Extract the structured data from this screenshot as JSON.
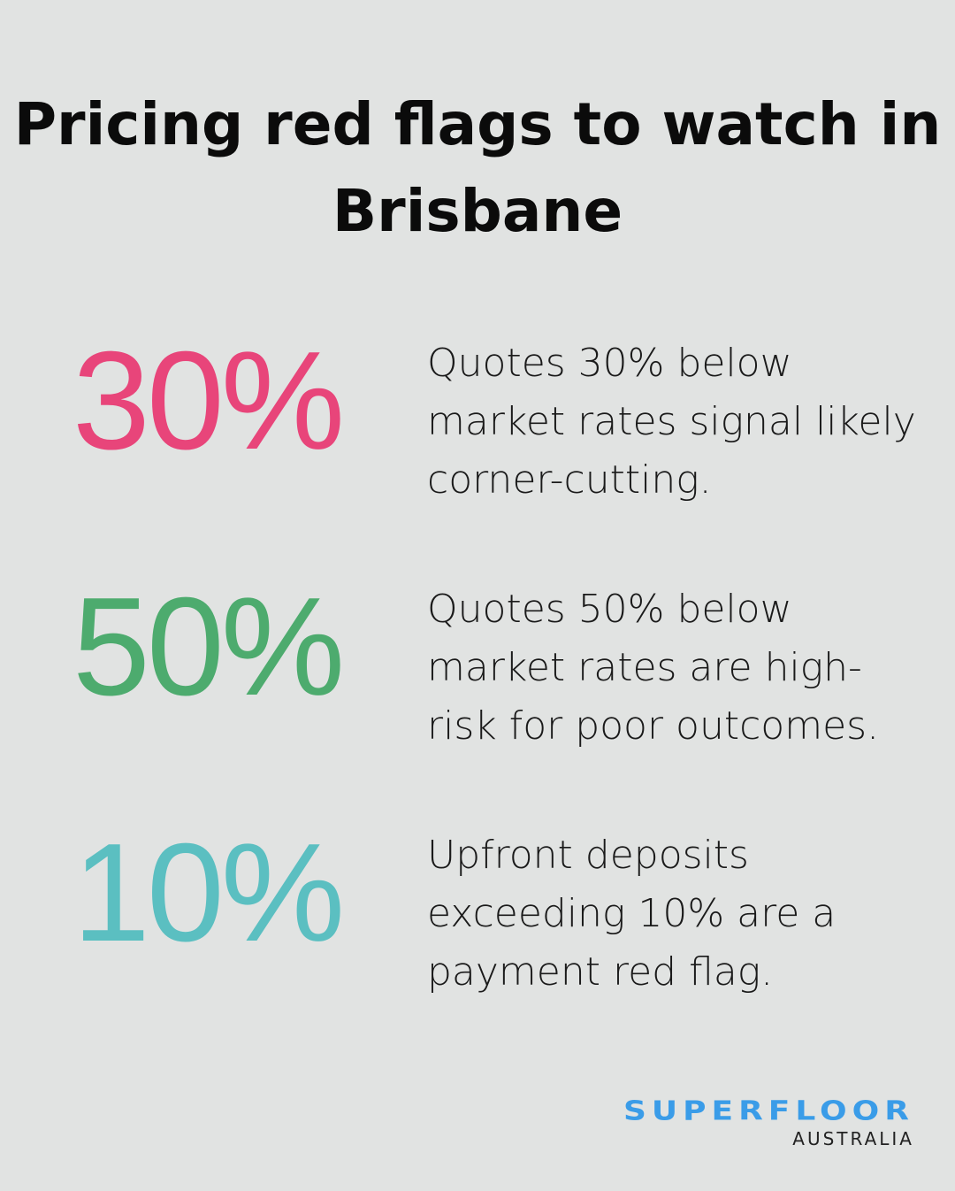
{
  "title": "Pricing red flags to watch in Brisbane",
  "stats": [
    {
      "value": "30%",
      "color": "#e8457a",
      "description": "Quotes 30% below market rates signal likely corner-cutting."
    },
    {
      "value": "50%",
      "color": "#4dab6e",
      "description": "Quotes 50% below market rates are high-risk for poor outcomes."
    },
    {
      "value": "10%",
      "color": "#5bbfc1",
      "description": "Upfront deposits exceeding 10% are a payment red flag."
    }
  ],
  "logo": {
    "main": "SUPERFLOOR",
    "sub": "AUSTRALIA",
    "color": "#3a9ce8"
  }
}
